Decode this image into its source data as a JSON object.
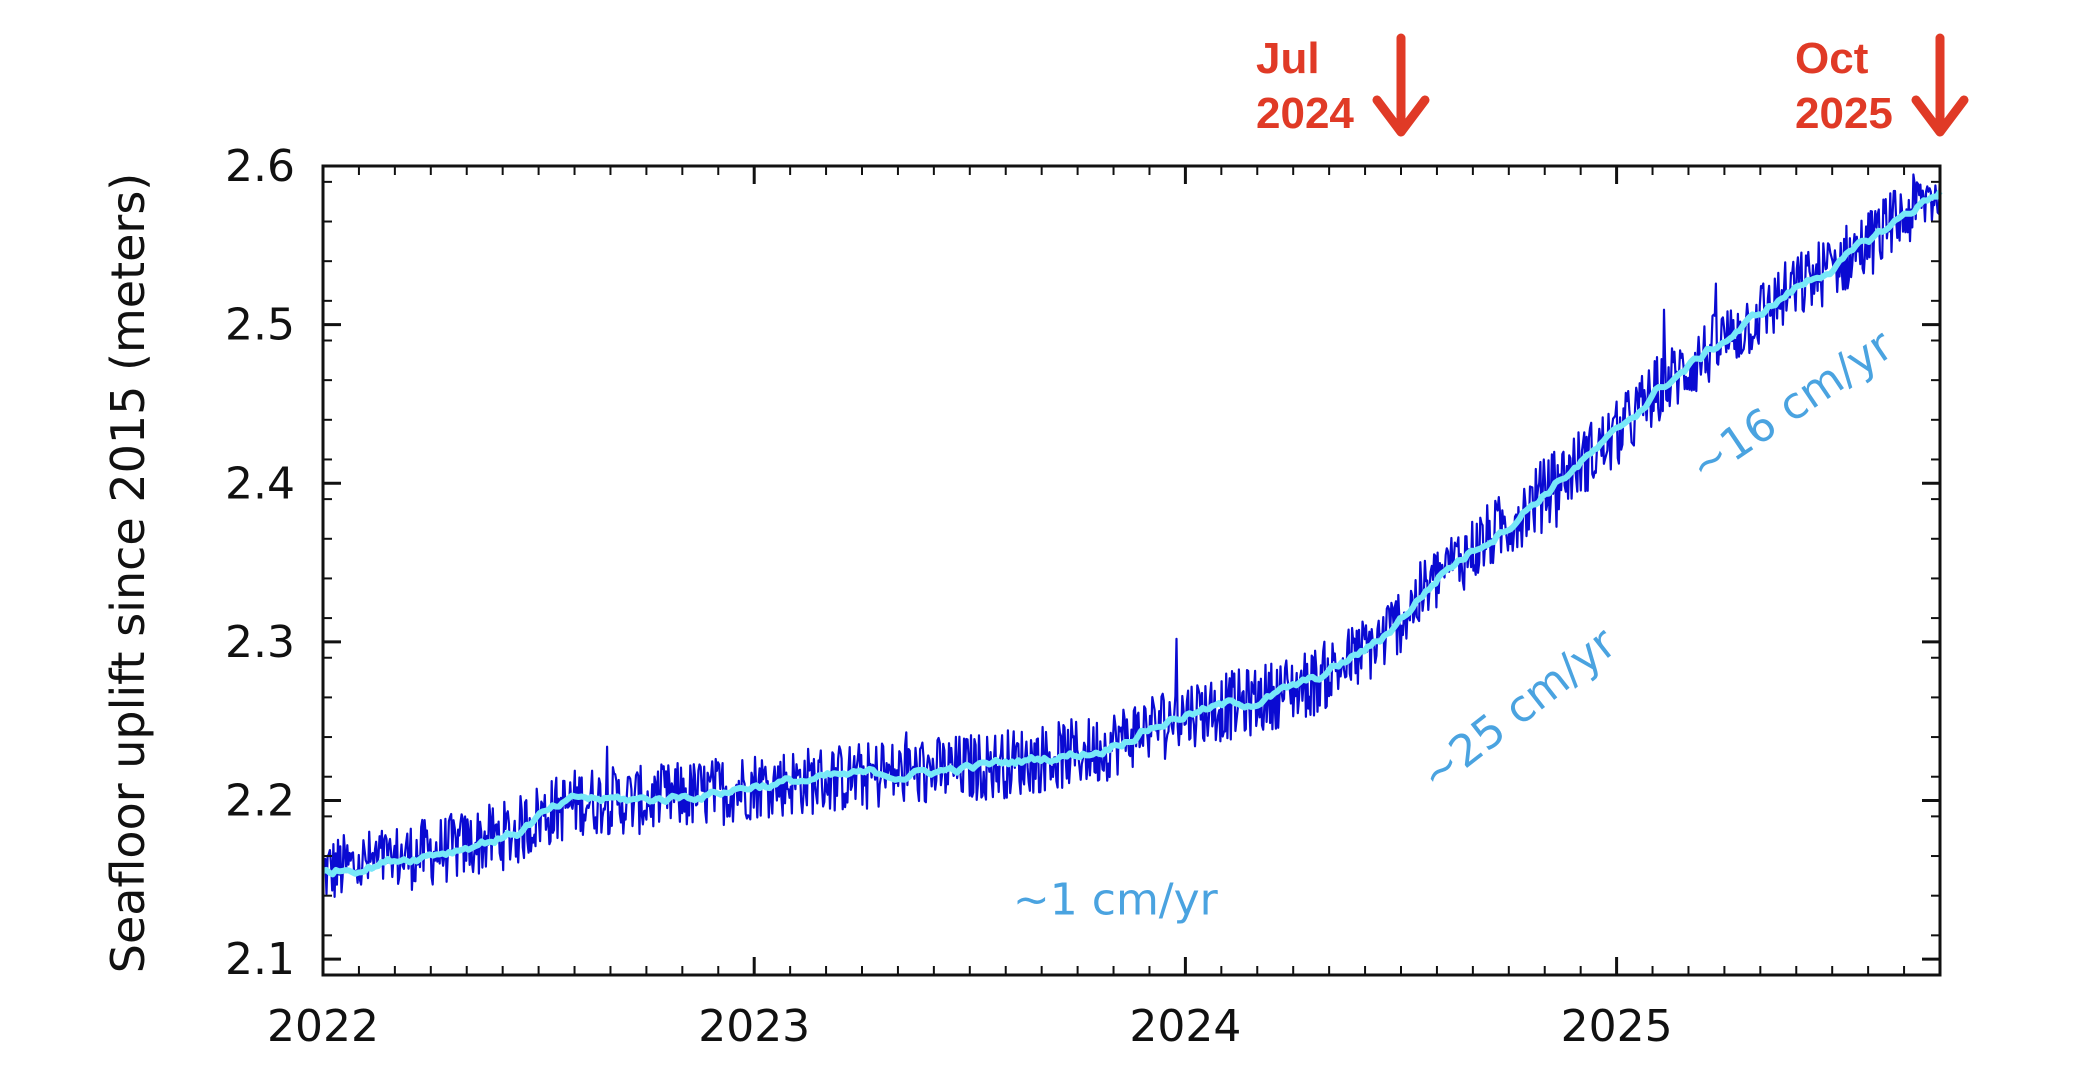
{
  "chart_data": {
    "type": "line",
    "ylabel": "Seafloor uplift since 2015 (meters)",
    "xlabel": "",
    "xlim": [
      2022.0,
      2025.75
    ],
    "ylim": [
      2.09,
      2.6
    ],
    "x_ticks": [
      "2022",
      "2023",
      "2024",
      "2025"
    ],
    "y_ticks": [
      "2.1",
      "2.2",
      "2.3",
      "2.4",
      "2.5",
      "2.6"
    ],
    "grid": false,
    "series": [
      {
        "kind": "raw",
        "color": "#0a0ad2",
        "x": [
          2022.0,
          2022.1,
          2022.2,
          2022.3,
          2022.45,
          2022.5,
          2022.6,
          2022.75,
          2022.9,
          2023.0,
          2023.1,
          2023.25,
          2023.4,
          2023.55,
          2023.7,
          2023.8,
          2023.9,
          2024.0,
          2024.15,
          2024.3,
          2024.45,
          2024.6,
          2024.75,
          2024.9,
          2025.0,
          2025.1,
          2025.25,
          2025.4,
          2025.55,
          2025.7,
          2025.75
        ],
        "y": [
          2.155,
          2.16,
          2.165,
          2.17,
          2.18,
          2.19,
          2.2,
          2.2,
          2.205,
          2.21,
          2.212,
          2.215,
          2.218,
          2.222,
          2.228,
          2.232,
          2.245,
          2.255,
          2.262,
          2.275,
          2.3,
          2.345,
          2.375,
          2.41,
          2.43,
          2.46,
          2.49,
          2.52,
          2.545,
          2.575,
          2.585
        ],
        "noise": 0.022
      },
      {
        "kind": "smoothed",
        "color": "#78e8f8",
        "x": [
          2022.0,
          2022.1,
          2022.2,
          2022.3,
          2022.45,
          2022.5,
          2022.6,
          2022.75,
          2022.9,
          2023.0,
          2023.1,
          2023.25,
          2023.4,
          2023.55,
          2023.7,
          2023.8,
          2023.9,
          2024.0,
          2024.15,
          2024.3,
          2024.45,
          2024.6,
          2024.75,
          2024.9,
          2025.0,
          2025.1,
          2025.25,
          2025.4,
          2025.55,
          2025.7,
          2025.75
        ],
        "y": [
          2.155,
          2.16,
          2.165,
          2.17,
          2.18,
          2.19,
          2.2,
          2.2,
          2.205,
          2.21,
          2.212,
          2.215,
          2.218,
          2.222,
          2.228,
          2.232,
          2.245,
          2.255,
          2.262,
          2.275,
          2.3,
          2.345,
          2.375,
          2.41,
          2.43,
          2.46,
          2.49,
          2.52,
          2.545,
          2.575,
          2.585
        ],
        "noise": 0.004
      }
    ],
    "annotations": [
      {
        "text": "~1 cm/yr",
        "color": "#4aa3e0",
        "x": 2023.6,
        "y": 2.128,
        "rotation": 0
      },
      {
        "text": "~25 cm/yr",
        "color": "#4aa3e0",
        "x": 2024.58,
        "y": 2.205,
        "rotation": -38
      },
      {
        "text": "~16 cm/yr",
        "color": "#4aa3e0",
        "x": 2025.2,
        "y": 2.4,
        "rotation": -34
      }
    ],
    "markers": [
      {
        "line1": "Jul",
        "line2": "2024",
        "color": "#e03a26",
        "x": 2024.5
      },
      {
        "line1": "Oct",
        "line2": "2025",
        "color": "#e03a26",
        "x": 2025.75
      }
    ]
  }
}
